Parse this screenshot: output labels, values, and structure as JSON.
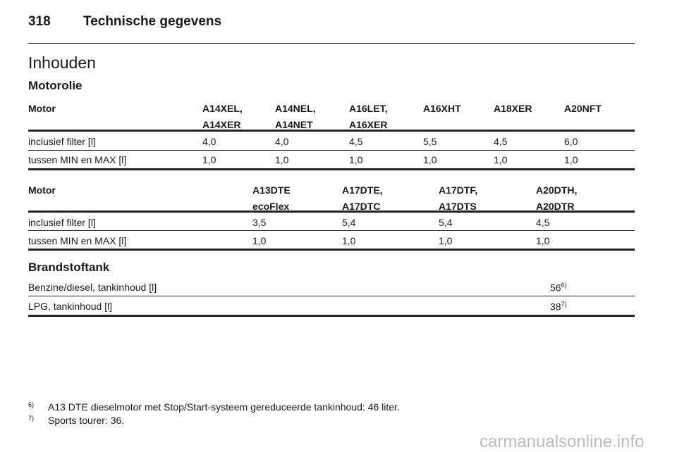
{
  "header": {
    "page_number": "318",
    "title": "Technische gegevens"
  },
  "section_title": "Inhouden",
  "subsections": [
    {
      "title": "Motorolie",
      "tables": [
        {
          "header": [
            "Motor",
            "A14XEL,\nA14XER",
            "A14NEL,\nA14NET",
            "A16LET,\nA16XER",
            "A16XHT",
            "A18XER",
            "A20NFT"
          ],
          "rows": [
            [
              "inclusief filter [l]",
              "4,0",
              "4,0",
              "4,5",
              "5,5",
              "4,5",
              "6,0"
            ],
            [
              "tussen MIN en MAX [l]",
              "1,0",
              "1,0",
              "1,0",
              "1,0",
              "1,0",
              "1,0"
            ]
          ]
        },
        {
          "header": [
            "Motor",
            "A13DTE\necoFlex",
            "A17DTE,\nA17DTC",
            "A17DTF,\nA17DTS",
            "A20DTH,\nA20DTR"
          ],
          "rows": [
            [
              "inclusief filter [l]",
              "3,5",
              "5,4",
              "5,4",
              "4,5"
            ],
            [
              "tussen MIN en MAX [l]",
              "1,0",
              "1,0",
              "1,0",
              "1,0"
            ]
          ]
        }
      ]
    },
    {
      "title": "Brandstoftank",
      "tables": [
        {
          "rows": [
            [
              "Benzine/diesel, tankinhoud [l]",
              {
                "text": "56",
                "note": "6)"
              }
            ],
            [
              "LPG, tankinhoud [l]",
              {
                "text": "38",
                "note": "7)"
              }
            ]
          ]
        }
      ]
    }
  ],
  "footnotes": [
    {
      "marker": "6)",
      "text": "A13 DTE dieselmotor met Stop/Start-systeem gereduceerde tankinhoud: 46 liter."
    },
    {
      "marker": "7)",
      "text": "Sports tourer: 36."
    }
  ],
  "watermark": "carmanualsonline.info"
}
